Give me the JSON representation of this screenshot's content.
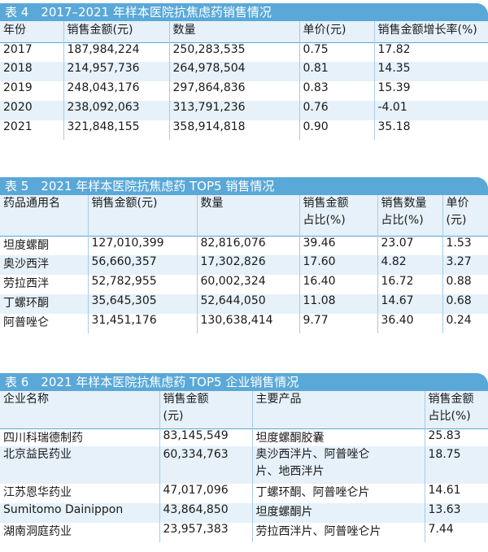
{
  "table4": {
    "title": "表 4　2017–2021 年样本医院抗焦虑药销售情况",
    "headers": [
      "年份",
      "销售金额(元)",
      "数量",
      "单价(元)",
      "销售金额增长率(%)"
    ],
    "rows": [
      [
        "2017",
        "187,984,224",
        "250,283,535",
        "0.75",
        "17.82"
      ],
      [
        "2018",
        "214,957,736",
        "264,978,504",
        "0.81",
        "14.35"
      ],
      [
        "2019",
        "248,043,176",
        "297,864,836",
        "0.83",
        "15.39"
      ],
      [
        "2020",
        "238,092,063",
        "313,791,236",
        "0.76",
        "-4.01"
      ],
      [
        "2021",
        "321,848,155",
        "358,914,818",
        "0.90",
        "35.18"
      ]
    ]
  },
  "table5": {
    "title": "表 5　2021 年样本医院抗焦虑药 TOP5 销售情况",
    "headers": [
      [
        "药品通用名",
        ""
      ],
      [
        "销售金额(元)",
        ""
      ],
      [
        "数量",
        ""
      ],
      [
        "销售金额",
        "占比(%)"
      ],
      [
        "销售数量",
        "占比(%)"
      ],
      [
        "单价",
        "(元)"
      ]
    ],
    "rows": [
      [
        "坦度螺酮",
        "127,010,399",
        "82,816,076",
        "39.46",
        "23.07",
        "1.53"
      ],
      [
        "奥沙西泮",
        "56,660,357",
        "17,302,826",
        "17.60",
        "4.82",
        "3.27"
      ],
      [
        "劳拉西泮",
        "52,782,955",
        "60,002,324",
        "16.40",
        "16.72",
        "0.88"
      ],
      [
        "丁螺环酮",
        "35,645,305",
        "52,644,050",
        "11.08",
        "14.67",
        "0.68"
      ],
      [
        "阿普唑仑",
        "31,451,176",
        "130,638,414",
        "9.77",
        "36.40",
        "0.24"
      ]
    ]
  },
  "table6": {
    "title": "表 6　2021 年样本医院抗焦虑药 TOP5 企业销售情况",
    "headers": [
      [
        "企业名称",
        ""
      ],
      [
        "销售金额",
        "(元)"
      ],
      [
        "主要产品",
        ""
      ],
      [
        "销售金额",
        "占比(%)"
      ]
    ],
    "rows": [
      [
        "四川科瑞德制药",
        "83,145,549",
        "坦度螺酮胶囊",
        "",
        "25.83"
      ],
      [
        "北京益民药业",
        "60,334,763",
        "奥沙西泮片、阿普唑仑",
        "片、地西泮片",
        "18.75"
      ],
      [
        "江苏恩华药业",
        "47,017,096",
        "丁螺环酮、阿普唑仑片",
        "",
        "14.61"
      ],
      [
        "Sumitomo Dainippon",
        "43,864,850",
        "坦度螺酮片",
        "",
        "13.63"
      ],
      [
        "湖南洞庭药业",
        "23,957,383",
        "劳拉西泮片、阿普唑仑片",
        "",
        "7.44"
      ]
    ]
  }
}
